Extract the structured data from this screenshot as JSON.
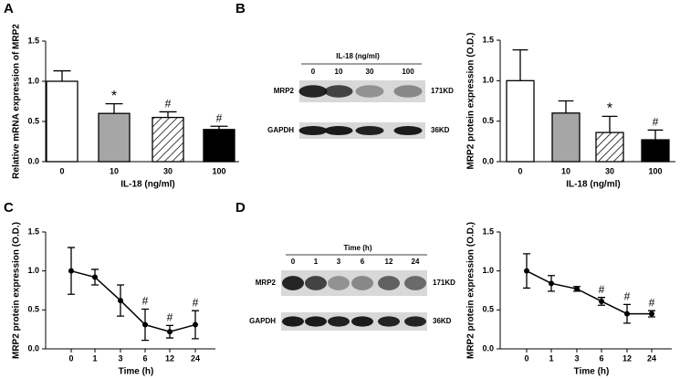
{
  "panels": [
    "A",
    "B",
    "C",
    "D"
  ],
  "blots": [
    {
      "header": "IL-18 (ng/ml)",
      "lanes": [
        "0",
        "10",
        "30",
        "100"
      ],
      "rows": [
        {
          "label": "MRP2",
          "size": "171KD"
        },
        {
          "label": "GAPDH",
          "size": "36KD"
        }
      ]
    },
    {
      "header": "Time (h)",
      "lanes": [
        "0",
        "1",
        "3",
        "6",
        "12",
        "24"
      ],
      "rows": [
        {
          "label": "MRP2",
          "size": "171KD"
        },
        {
          "label": "GAPDH",
          "size": "36KD"
        }
      ]
    }
  ],
  "chart_data": [
    {
      "type": "bar",
      "y_label": "Relative mRNA expression of MRP2",
      "x_label": "IL-18 (ng/ml)",
      "categories": [
        "0",
        "10",
        "30",
        "100"
      ],
      "values": [
        1.0,
        0.6,
        0.55,
        0.4
      ],
      "errors": [
        0.13,
        0.12,
        0.07,
        0.04
      ],
      "colors": [
        "#ffffff",
        "#a6a6a6",
        "#ffffff",
        "#000000"
      ],
      "hatch": [
        false,
        false,
        true,
        false
      ],
      "annotations": [
        null,
        "*",
        "#",
        "#"
      ],
      "ylim": [
        0,
        1.5
      ],
      "yticks": [
        {
          "value": 0,
          "label": "0.0"
        },
        0.5,
        {
          "value": 1,
          "label": "1.0"
        },
        1.5
      ]
    },
    {
      "type": "bar",
      "y_label": "MRP2 protein expression (O.D.)",
      "x_label": "IL-18 (ng/ml)",
      "categories": [
        "0",
        "10",
        "30",
        "100"
      ],
      "values": [
        1.0,
        0.6,
        0.36,
        0.27
      ],
      "errors": [
        0.38,
        0.15,
        0.2,
        0.12
      ],
      "colors": [
        "#ffffff",
        "#a6a6a6",
        "#ffffff",
        "#000000"
      ],
      "hatch": [
        false,
        false,
        true,
        false
      ],
      "annotations": [
        null,
        null,
        "*",
        "#"
      ],
      "ylim": [
        0,
        1.5
      ],
      "yticks": [
        {
          "value": 0,
          "label": "0.0"
        },
        0.5,
        {
          "value": 1,
          "label": "1.0"
        },
        1.5
      ]
    },
    {
      "type": "line",
      "y_label": "MRP2 protein expression (O.D.)",
      "x_label": "Time (h)",
      "categories": [
        "0",
        "1",
        "3",
        "6",
        "12",
        "24"
      ],
      "values": [
        1.0,
        0.92,
        0.62,
        0.31,
        0.22,
        0.31
      ],
      "errors": [
        0.3,
        0.1,
        0.2,
        0.2,
        0.08,
        0.18
      ],
      "color": "#000000",
      "annotations": [
        null,
        null,
        null,
        "#",
        "#",
        "#"
      ],
      "ylim": [
        0,
        1.5
      ],
      "yticks": [
        {
          "value": 0,
          "label": "0.0"
        },
        0.5,
        {
          "value": 1,
          "label": "1.0"
        },
        1.5
      ]
    },
    {
      "type": "line",
      "y_label": "MRP2 protein expression (O.D.)",
      "x_label": "Time (h)",
      "categories": [
        "0",
        "1",
        "3",
        "6",
        "12",
        "24"
      ],
      "values": [
        1.0,
        0.84,
        0.77,
        0.61,
        0.45,
        0.45
      ],
      "errors": [
        0.22,
        0.1,
        0.03,
        0.05,
        0.12,
        0.04
      ],
      "color": "#000000",
      "annotations": [
        null,
        null,
        null,
        "#",
        "#",
        "#"
      ],
      "ylim": [
        0,
        1.5
      ],
      "yticks": [
        {
          "value": 0,
          "label": "0.0"
        },
        0.5,
        {
          "value": 1,
          "label": "1.0"
        },
        1.5
      ]
    }
  ]
}
